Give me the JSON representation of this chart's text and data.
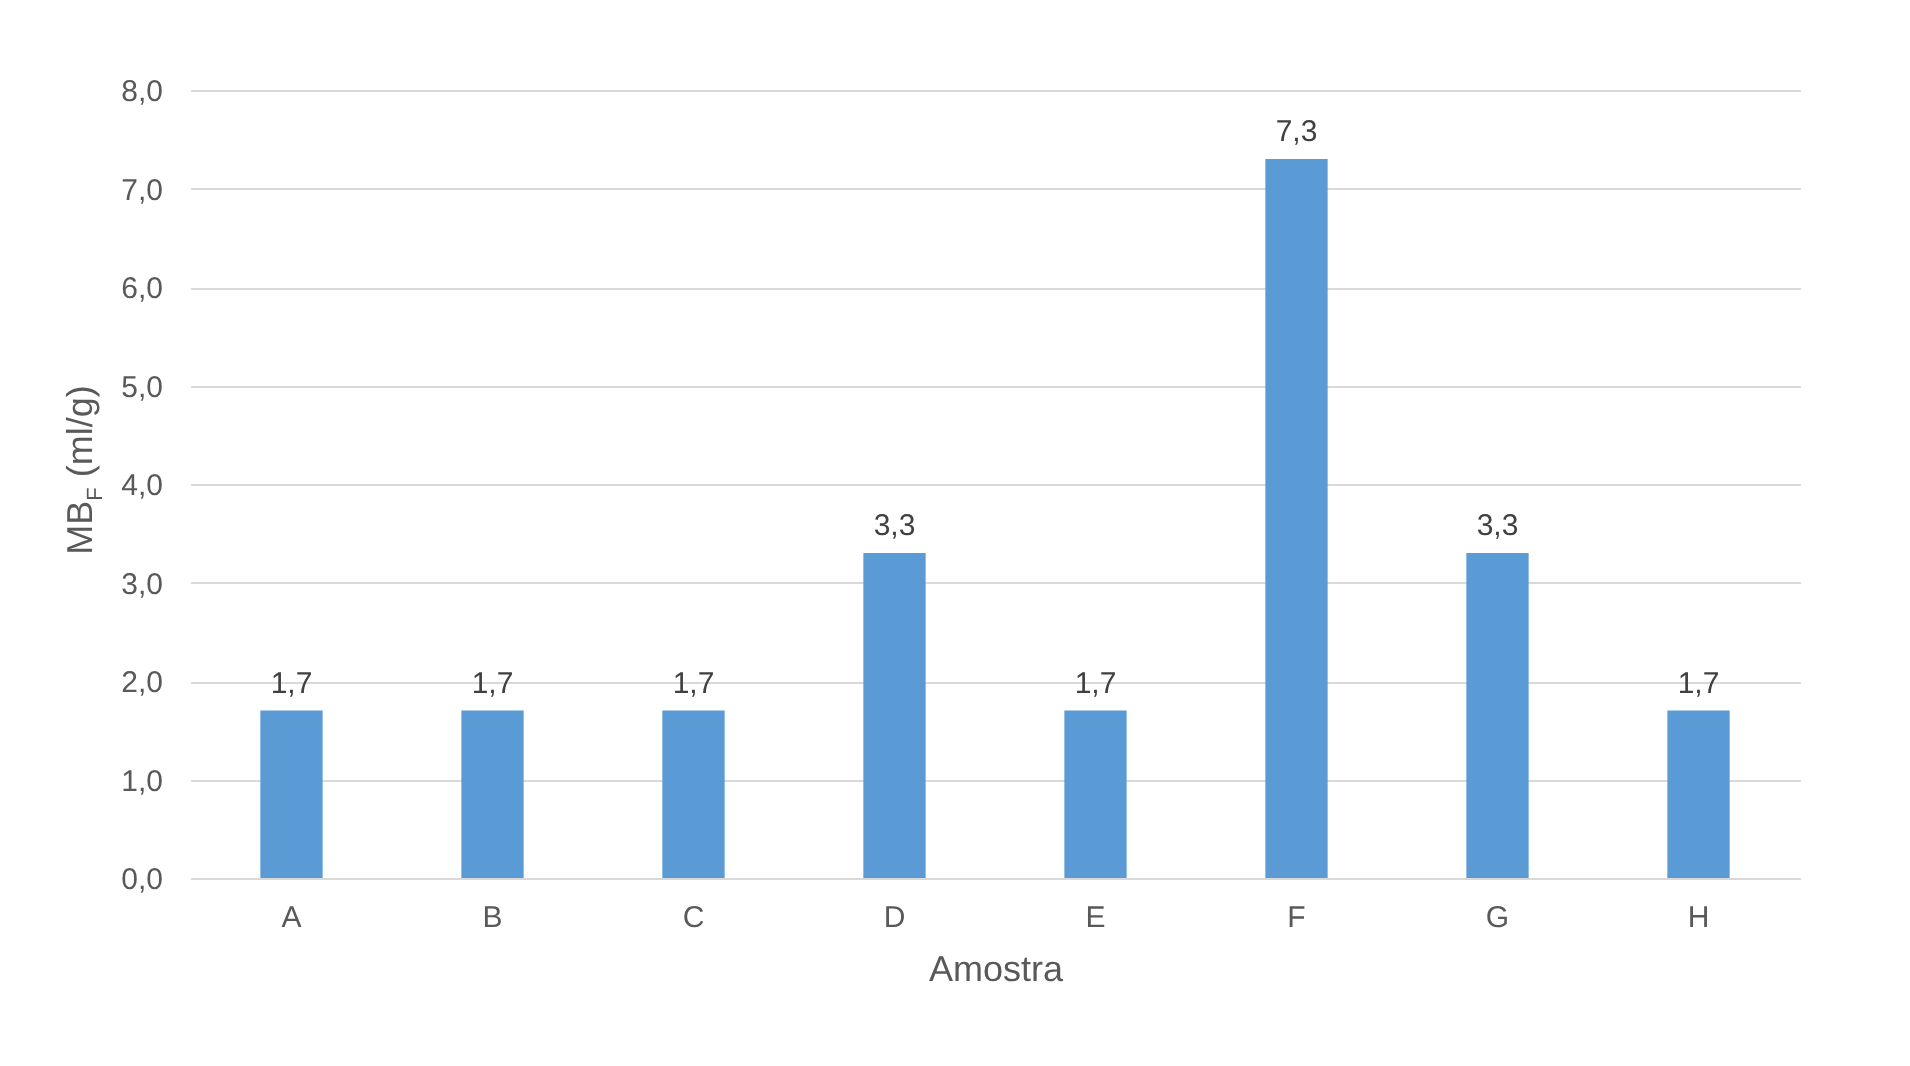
{
  "chart_data": {
    "type": "bar",
    "xlabel": "Amostra",
    "ylabel": "MB$_{F}$ (ml/g)",
    "categories": [
      "A",
      "B",
      "C",
      "D",
      "E",
      "F",
      "G",
      "H"
    ],
    "values": [
      1.7,
      1.7,
      1.7,
      3.3,
      1.7,
      7.3,
      3.3,
      1.7
    ],
    "value_labels": [
      "1,7",
      "1,7",
      "1,7",
      "3,3",
      "1,7",
      "7,3",
      "3,3",
      "1,7"
    ],
    "color": "#5b9bd5",
    "ylim": [
      0,
      8
    ],
    "yticks": [
      {
        "value": 0,
        "label": "0,0"
      },
      {
        "value": 1,
        "label": "1,0"
      },
      {
        "value": 2,
        "label": "2,0"
      },
      {
        "value": 3,
        "label": "3,0"
      },
      {
        "value": 4,
        "label": "4,0"
      },
      {
        "value": 5,
        "label": "5,0"
      },
      {
        "value": 6,
        "label": "6,0"
      },
      {
        "value": 7,
        "label": "7,0"
      },
      {
        "value": 8,
        "label": "8,0"
      }
    ],
    "grid": "y"
  }
}
